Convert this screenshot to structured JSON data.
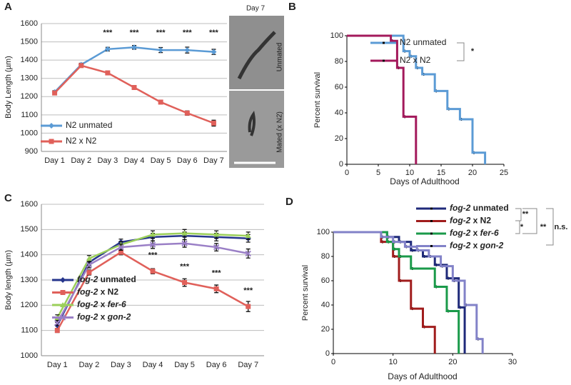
{
  "chart_data": [
    {
      "type": "line",
      "panel": "A",
      "ylabel": "Body Length (µm)",
      "categories": [
        "Day 1",
        "Day 2",
        "Day 3",
        "Day 4",
        "Day 5",
        "Day 6",
        "Day 7"
      ],
      "ylim": [
        900,
        1600
      ],
      "yticks": [
        900,
        1000,
        1100,
        1200,
        1300,
        1400,
        1500,
        1600
      ],
      "grid": true,
      "series": [
        {
          "name": "N2 unmated",
          "color": "#5b9bd5",
          "marker": "diamond",
          "values": [
            1225,
            1375,
            1460,
            1470,
            1455,
            1455,
            1445
          ],
          "errors": [
            8,
            8,
            10,
            10,
            14,
            16,
            14
          ]
        },
        {
          "name": "N2 x N2",
          "color": "#e0605a",
          "marker": "square",
          "values": [
            1220,
            1370,
            1330,
            1250,
            1170,
            1110,
            1055
          ],
          "errors": [
            8,
            8,
            8,
            8,
            8,
            12,
            16
          ]
        }
      ],
      "annotations": [
        "***",
        "***",
        "***",
        "***",
        "***"
      ],
      "image_labels": [
        "Day 7",
        "Unmated",
        "Mated (x N2)"
      ]
    },
    {
      "type": "step",
      "panel": "B",
      "xlabel": "Days of Adulthood",
      "ylabel": "Percent survival",
      "xlim": [
        0,
        25
      ],
      "xticks": [
        0,
        5,
        10,
        15,
        20,
        25
      ],
      "ylim": [
        0,
        100
      ],
      "yticks": [
        0,
        20,
        40,
        60,
        80,
        100
      ],
      "grid": false,
      "series": [
        {
          "name": "N2 unmated",
          "color": "#5b9bd5",
          "x": [
            0,
            9,
            10,
            11,
            12,
            14,
            16,
            18,
            20,
            22
          ],
          "values": [
            100,
            88,
            84,
            75,
            70,
            57,
            43,
            35,
            9,
            0
          ]
        },
        {
          "name": "N2 x N2",
          "color": "#a3195b",
          "x": [
            0,
            7,
            8,
            9,
            11
          ],
          "values": [
            100,
            96,
            75,
            37,
            0
          ]
        }
      ],
      "annotations": [
        "*"
      ]
    },
    {
      "type": "line",
      "panel": "C",
      "ylabel": "Body length (µm)",
      "categories": [
        "Day 1",
        "Day 2",
        "Day 3",
        "Day 4",
        "Day 5",
        "Day 6",
        "Day 7"
      ],
      "ylim": [
        1000,
        1600
      ],
      "yticks": [
        1000,
        1100,
        1200,
        1300,
        1400,
        1500,
        1600
      ],
      "grid": true,
      "series": [
        {
          "name": "fog-2 unmated",
          "color": "#26358c",
          "marker": "diamond",
          "values": [
            1120,
            1370,
            1450,
            1470,
            1475,
            1470,
            1465
          ],
          "errors": [
            12,
            12,
            12,
            15,
            15,
            15,
            15
          ]
        },
        {
          "name": "fog-2 x N2",
          "color": "#e0605a",
          "marker": "square",
          "values": [
            1100,
            1330,
            1410,
            1335,
            1290,
            1265,
            1195
          ],
          "errors": [
            8,
            10,
            10,
            10,
            15,
            15,
            20
          ]
        },
        {
          "name": "fog-2 x fer-6",
          "color": "#9bcf5a",
          "marker": "triangle",
          "values": [
            1150,
            1385,
            1440,
            1480,
            1485,
            1480,
            1475
          ],
          "errors": [
            12,
            12,
            12,
            15,
            15,
            15,
            15
          ]
        },
        {
          "name": "fog-2 x gon-2",
          "color": "#9a7fc6",
          "marker": "cross",
          "values": [
            1130,
            1360,
            1430,
            1440,
            1445,
            1430,
            1405
          ],
          "errors": [
            10,
            12,
            12,
            15,
            15,
            15,
            18
          ]
        }
      ],
      "annotations": [
        "***",
        "***",
        "***",
        "***"
      ]
    },
    {
      "type": "step",
      "panel": "D",
      "xlabel": "Days of Adulthood",
      "ylabel": "Percent survival",
      "xlim": [
        0,
        30
      ],
      "xticks": [
        0,
        10,
        20,
        30
      ],
      "ylim": [
        0,
        100
      ],
      "yticks": [
        0,
        20,
        40,
        60,
        80,
        100
      ],
      "grid": false,
      "series": [
        {
          "name": "fog-2 unmated",
          "color": "#1f2a7a",
          "x": [
            0,
            9,
            11,
            13,
            15,
            17,
            19,
            21,
            22
          ],
          "values": [
            100,
            96,
            92,
            85,
            80,
            73,
            62,
            38,
            0
          ]
        },
        {
          "name": "fog-2 x N2",
          "color": "#a01c1c",
          "x": [
            0,
            8,
            10,
            11,
            13,
            15,
            17
          ],
          "values": [
            100,
            92,
            80,
            60,
            37,
            22,
            0
          ]
        },
        {
          "name": "fog-2 x fer-6",
          "color": "#1a9a4a",
          "x": [
            0,
            9,
            10,
            11,
            13,
            17,
            19,
            21
          ],
          "values": [
            100,
            92,
            86,
            80,
            70,
            55,
            35,
            0
          ]
        },
        {
          "name": "fog-2 x gon-2",
          "color": "#8282c8",
          "x": [
            0,
            8,
            10,
            12,
            14,
            16,
            18,
            20,
            22,
            24,
            25
          ],
          "values": [
            100,
            96,
            92,
            88,
            85,
            80,
            72,
            60,
            40,
            12,
            0
          ]
        }
      ],
      "annotations": [
        "**",
        "**",
        "*",
        "n.s."
      ]
    }
  ]
}
